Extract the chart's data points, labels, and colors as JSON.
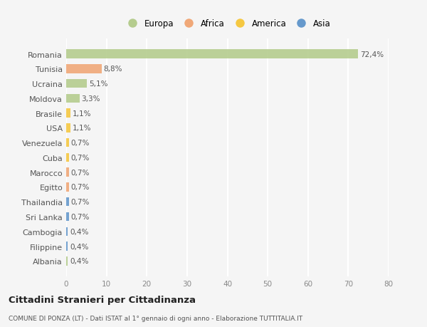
{
  "categories": [
    "Romania",
    "Tunisia",
    "Ucraina",
    "Moldova",
    "Brasile",
    "USA",
    "Venezuela",
    "Cuba",
    "Marocco",
    "Egitto",
    "Thailandia",
    "Sri Lanka",
    "Cambogia",
    "Filippine",
    "Albania"
  ],
  "values": [
    72.4,
    8.8,
    5.1,
    3.3,
    1.1,
    1.1,
    0.7,
    0.7,
    0.7,
    0.7,
    0.7,
    0.7,
    0.4,
    0.4,
    0.4
  ],
  "labels": [
    "72,4%",
    "8,8%",
    "5,1%",
    "3,3%",
    "1,1%",
    "1,1%",
    "0,7%",
    "0,7%",
    "0,7%",
    "0,7%",
    "0,7%",
    "0,7%",
    "0,4%",
    "0,4%",
    "0,4%"
  ],
  "colors": [
    "#b5cc8e",
    "#f0a878",
    "#b5cc8e",
    "#b5cc8e",
    "#f5c842",
    "#f5c842",
    "#f5c842",
    "#f5c842",
    "#f0a878",
    "#f0a878",
    "#6699cc",
    "#6699cc",
    "#6699cc",
    "#6699cc",
    "#b5cc8e"
  ],
  "legend": [
    {
      "label": "Europa",
      "color": "#b5cc8e"
    },
    {
      "label": "Africa",
      "color": "#f0a878"
    },
    {
      "label": "America",
      "color": "#f5c842"
    },
    {
      "label": "Asia",
      "color": "#6699cc"
    }
  ],
  "xlim": [
    0,
    80
  ],
  "xticks": [
    0,
    10,
    20,
    30,
    40,
    50,
    60,
    70,
    80
  ],
  "title": "Cittadini Stranieri per Cittadinanza",
  "subtitle": "COMUNE DI PONZA (LT) - Dati ISTAT al 1° gennaio di ogni anno - Elaborazione TUTTITALIA.IT",
  "bg_color": "#f5f5f5",
  "grid_color": "#ffffff",
  "bar_height": 0.6
}
